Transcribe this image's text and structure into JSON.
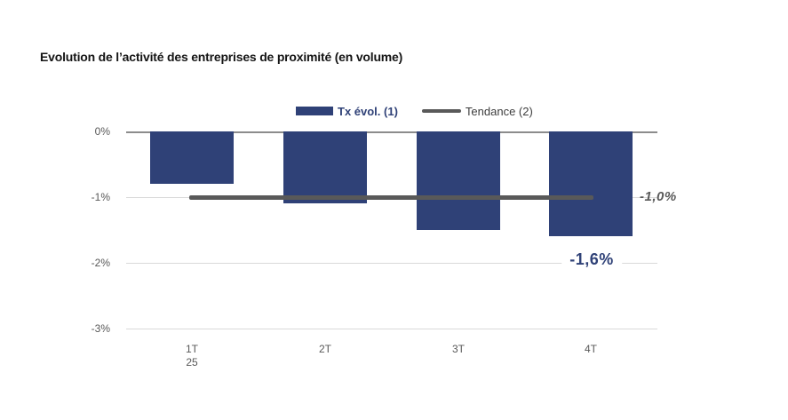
{
  "title": "Evolution de l’activité des entreprises de proximité (en volume)",
  "legend": {
    "series1_label": "Tx évol. (1)",
    "series2_label": "Tendance (2)"
  },
  "y_axis": {
    "ticks": [
      "0%",
      "-1%",
      "-2%",
      "-3%"
    ]
  },
  "x_axis": {
    "labels": [
      "1T",
      "2T",
      "3T",
      "4T"
    ],
    "year_sublabel": "25"
  },
  "annotations": {
    "trend_label": "-1,0%",
    "last_bar_label": "-1,6%"
  },
  "colors": {
    "bar": "#2F4177",
    "trend": "#595959",
    "grid": "#D9D9D9",
    "zero_axis": "#8C8C8C",
    "tick_text": "#595959",
    "title_text": "#151515"
  },
  "chart_data": {
    "type": "bar",
    "title": "Evolution de l’activité des entreprises de proximité (en volume)",
    "categories": [
      "1T 25",
      "2T",
      "3T",
      "4T"
    ],
    "series": [
      {
        "name": "Tx évol. (1)",
        "type": "bar",
        "values": [
          -0.8,
          -1.1,
          -1.5,
          -1.6
        ],
        "color": "#2F4177"
      },
      {
        "name": "Tendance (2)",
        "type": "line",
        "values": [
          -1.0,
          -1.0,
          -1.0,
          -1.0
        ],
        "color": "#595959"
      }
    ],
    "ylabel": "",
    "xlabel": "",
    "ylim": [
      -3,
      0
    ],
    "ytick_values": [
      0,
      -1,
      -2,
      -3
    ],
    "ytick_format": "percent",
    "grid": "horizontal",
    "legend_position": "top-center",
    "annotations": [
      {
        "text": "-1,0%",
        "refers_to": "Tendance (2)",
        "value": -1.0
      },
      {
        "text": "-1,6%",
        "refers_to": "Tx évol. (1) 4T",
        "value": -1.6
      }
    ]
  }
}
